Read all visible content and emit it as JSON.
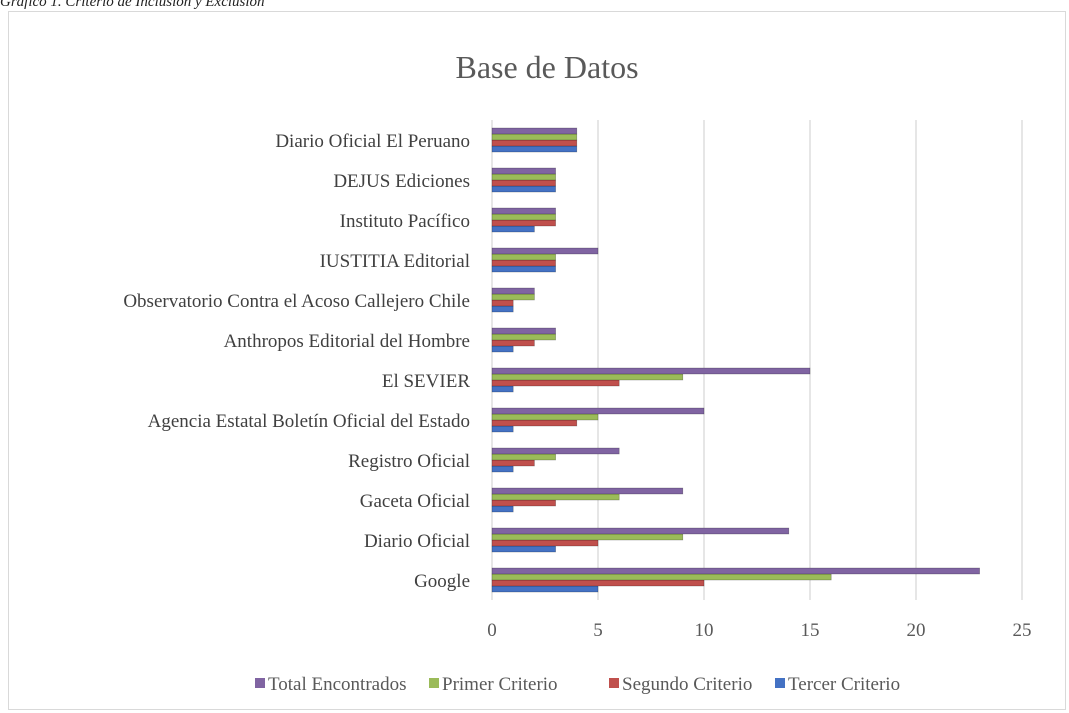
{
  "caption": "Gráfico 1. Criterio de Inclusión y Exclusión",
  "chart_data": {
    "type": "bar",
    "orientation": "horizontal",
    "title": "Base de Datos",
    "categories": [
      "Google",
      "Diario Oficial",
      "Gaceta Oficial",
      "Registro Oficial",
      "Agencia Estatal Boletín Oficial del Estado",
      "El SEVIER",
      "Anthropos Editorial del Hombre",
      "Observatorio Contra el Acoso Callejero Chile",
      "IUSTITIA Editorial",
      "Instituto Pacífico",
      "DEJUS Ediciones",
      "Diario Oficial El Peruano"
    ],
    "series": [
      {
        "name": "Tercer Criterio",
        "color": "#4472c4",
        "values": [
          5,
          3,
          1,
          1,
          1,
          1,
          1,
          1,
          3,
          2,
          3,
          4
        ]
      },
      {
        "name": "Segundo Criterio",
        "color": "#c0504d",
        "values": [
          10,
          5,
          3,
          2,
          4,
          6,
          2,
          1,
          3,
          3,
          3,
          4
        ]
      },
      {
        "name": "Primer Criterio",
        "color": "#9bbb59",
        "values": [
          16,
          9,
          6,
          3,
          5,
          9,
          3,
          2,
          3,
          3,
          3,
          4
        ]
      },
      {
        "name": "Total Encontrados",
        "color": "#8064a2",
        "values": [
          23,
          14,
          9,
          6,
          10,
          15,
          3,
          2,
          5,
          3,
          3,
          4
        ]
      }
    ],
    "xlim": [
      0,
      25
    ],
    "xticks": [
      0,
      5,
      10,
      15,
      20,
      25
    ],
    "grid": true,
    "legend_order": [
      "Total Encontrados",
      "Primer Criterio",
      "Segundo Criterio",
      "Tercer Criterio"
    ],
    "legend_position": "bottom"
  }
}
